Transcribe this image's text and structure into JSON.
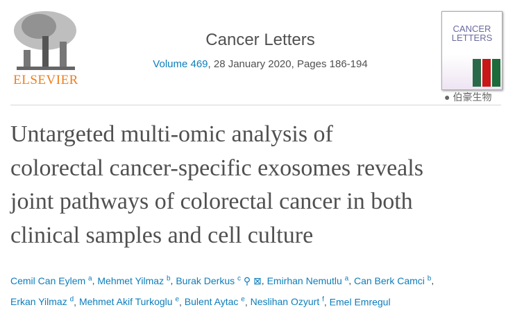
{
  "publisher": {
    "logo_text": "ELSEVIER"
  },
  "journal": {
    "title": "Cancer Letters",
    "volume_link": "Volume 469",
    "volume_rest": ", 28 January 2020, Pages 186-194"
  },
  "cover": {
    "title_line1": "CANCER",
    "title_line2": "LETTERS"
  },
  "article": {
    "title_lines": [
      "Untargeted multi-omic analysis of",
      "colorectal cancer-specific exosomes reveals",
      "joint pathways of colorectal cancer in both",
      "clinical samples and cell culture"
    ]
  },
  "authors": [
    {
      "name": "Cemil Can Eylem",
      "aff": "a"
    },
    {
      "name": "Mehmet Yilmaz",
      "aff": "b"
    },
    {
      "name": "Burak Derkus",
      "aff": "c"
    },
    {
      "name": "Emirhan Nemutlu",
      "aff": "a"
    },
    {
      "name": "Can Berk Camci",
      "aff": "b"
    },
    {
      "name": "Erkan Yilmaz",
      "aff": "d"
    },
    {
      "name": "Mehmet Akif Turkoglu",
      "aff": "e"
    },
    {
      "name": "Bulent Aytac",
      "aff": "e"
    },
    {
      "name": "Neslihan Ozyurt",
      "aff": "f"
    },
    {
      "name": "Emel Emregul",
      "aff": ""
    }
  ],
  "watermark": {
    "text": "伯豪生物"
  },
  "colors": {
    "link": "#0c7dbb",
    "text": "#505050",
    "elsevier": "#f07d1a"
  }
}
